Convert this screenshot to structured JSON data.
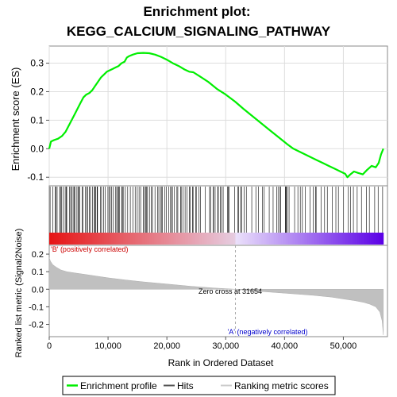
{
  "chart_data": {
    "type": "line",
    "title_line1": "Enrichment plot:",
    "title_line2": "KEGG_CALCIUM_SIGNALING_PATHWAY",
    "es_panel": {
      "ylabel": "Enrichment score (ES)",
      "ylim": [
        -0.13,
        0.36
      ],
      "yticks": [
        -0.1,
        0.0,
        0.1,
        0.2,
        0.3
      ],
      "ytick_labels": [
        "-0.1",
        "0.0",
        "0.1",
        "0.2",
        "0.3"
      ],
      "grid": true,
      "series": [
        {
          "name": "Enrichment profile",
          "color": "#00ee00",
          "x": [
            0,
            300,
            800,
            1500,
            2200,
            2800,
            3300,
            3800,
            4300,
            4800,
            5300,
            5800,
            6300,
            6800,
            7300,
            7800,
            8300,
            8800,
            9300,
            9800,
            10300,
            10800,
            11300,
            11800,
            12300,
            12800,
            13200,
            13600,
            14200,
            15000,
            16000,
            17000,
            18000,
            19000,
            20000,
            21000,
            22000,
            23000,
            23800,
            24500,
            25500,
            27000,
            28500,
            30000,
            31600,
            33000,
            34500,
            36000,
            37500,
            39000,
            40500,
            41500,
            42500,
            43500,
            44500,
            45500,
            46500,
            47500,
            48500,
            49500,
            50300,
            50700,
            51200,
            51800,
            52500,
            53300,
            54000,
            54800,
            55500,
            56000,
            56400,
            56800
          ],
          "y": [
            0.0,
            0.025,
            0.03,
            0.035,
            0.045,
            0.06,
            0.08,
            0.1,
            0.12,
            0.14,
            0.16,
            0.18,
            0.19,
            0.195,
            0.205,
            0.22,
            0.235,
            0.25,
            0.26,
            0.27,
            0.275,
            0.28,
            0.285,
            0.29,
            0.3,
            0.305,
            0.32,
            0.325,
            0.33,
            0.335,
            0.336,
            0.335,
            0.33,
            0.322,
            0.312,
            0.3,
            0.29,
            0.278,
            0.27,
            0.268,
            0.255,
            0.235,
            0.21,
            0.19,
            0.165,
            0.14,
            0.115,
            0.09,
            0.065,
            0.04,
            0.015,
            0.0,
            -0.01,
            -0.02,
            -0.03,
            -0.04,
            -0.05,
            -0.06,
            -0.07,
            -0.08,
            -0.088,
            -0.1,
            -0.09,
            -0.08,
            -0.085,
            -0.09,
            -0.075,
            -0.06,
            -0.065,
            -0.05,
            -0.02,
            0.0
          ]
        }
      ]
    },
    "metric_panel": {
      "xlabel": "Rank in Ordered Dataset",
      "ylabel": "Ranked list metric (Signal2Noise)",
      "xlim": [
        0,
        57500
      ],
      "xticks": [
        0,
        10000,
        20000,
        30000,
        40000,
        50000
      ],
      "xtick_labels": [
        "0",
        "10,000",
        "20,000",
        "30,000",
        "40,000",
        "50,000"
      ],
      "ylim": [
        -0.27,
        0.25
      ],
      "yticks": [
        -0.2,
        -0.1,
        0.0,
        0.1,
        0.2
      ],
      "ytick_labels": [
        "-0.2",
        "-0.1",
        "0.0",
        "0.1",
        "0.2"
      ],
      "zero_cross_label": "Zero cross at 31654",
      "zero_cross": 31654,
      "positive_label": "'B' (positively correlated)",
      "negative_label": "'A' (negatively correlated)",
      "profile_x": [
        0,
        200,
        600,
        1200,
        2000,
        3000,
        4500,
        6000,
        8000,
        10000,
        13000,
        16000,
        20000,
        24000,
        28000,
        31654,
        35000,
        40000,
        45000,
        48000,
        50000,
        52000,
        53500,
        54500,
        55500,
        56200,
        56600,
        56800
      ],
      "profile_y": [
        0.18,
        0.16,
        0.14,
        0.125,
        0.11,
        0.1,
        0.092,
        0.085,
        0.075,
        0.065,
        0.053,
        0.042,
        0.03,
        0.017,
        0.007,
        0.0,
        -0.01,
        -0.022,
        -0.035,
        -0.045,
        -0.055,
        -0.065,
        -0.075,
        -0.085,
        -0.1,
        -0.13,
        -0.18,
        -0.26
      ]
    },
    "hits": {
      "xmax": 56800
    },
    "legend": {
      "placement": "bottom",
      "entries": [
        {
          "label": "Enrichment profile",
          "color": "#00ee00"
        },
        {
          "label": "Hits",
          "color": "#555555"
        },
        {
          "label": "Ranking metric scores",
          "color": "#cccccc"
        }
      ]
    }
  }
}
